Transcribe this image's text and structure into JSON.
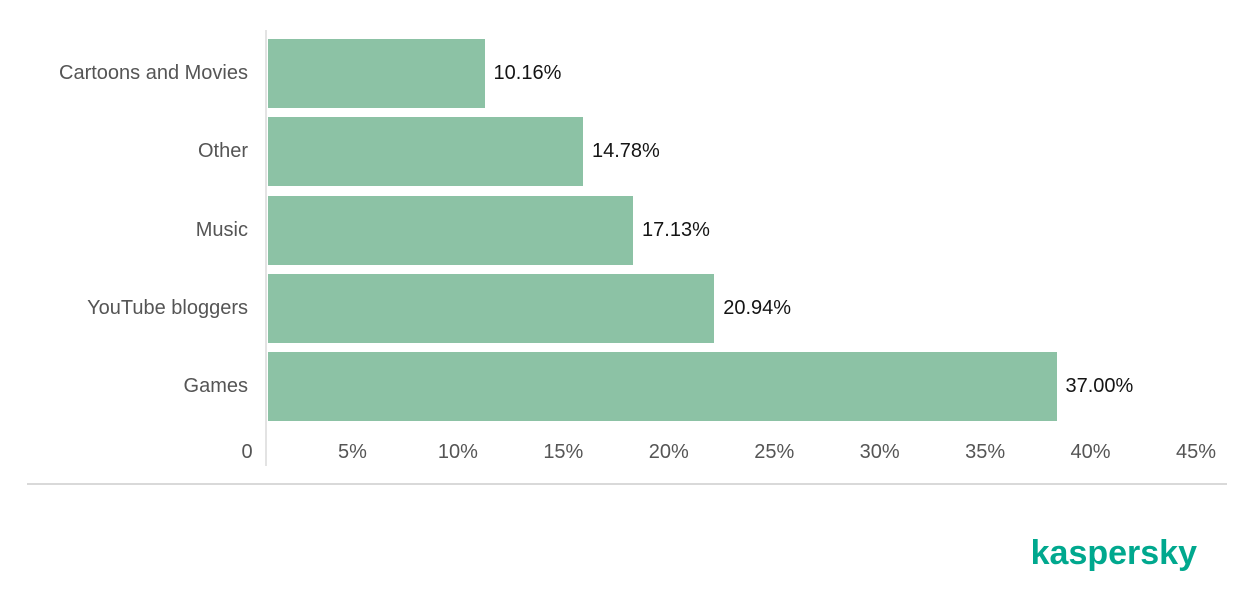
{
  "chart_data": {
    "type": "bar",
    "orientation": "horizontal",
    "categories": [
      "Cartoons and Movies",
      "Other",
      "Music",
      "YouTube bloggers",
      "Games"
    ],
    "values": [
      10.16,
      14.78,
      17.13,
      20.94,
      37.0
    ],
    "value_labels": [
      "10.16%",
      "14.78%",
      "17.13%",
      "20.94%",
      "37.00%"
    ],
    "x_ticks": [
      0,
      5,
      10,
      15,
      20,
      25,
      30,
      35,
      40,
      45
    ],
    "x_tick_labels": [
      "0",
      "5%",
      "10%",
      "15%",
      "20%",
      "25%",
      "30%",
      "35%",
      "40%",
      "45%"
    ],
    "xlim": [
      0,
      45
    ],
    "grid": false,
    "legend": false,
    "bar_color": "#8cc2a5"
  },
  "colors": {
    "bar": "#8cc2a5",
    "logo": "#00a88e",
    "label_text": "#555555",
    "value_text": "#141414",
    "axis_line": "#e3e3e3",
    "separator": "#d9d9d9",
    "background": "#ffffff"
  },
  "footer": {
    "logo_text": "kaspersky"
  }
}
